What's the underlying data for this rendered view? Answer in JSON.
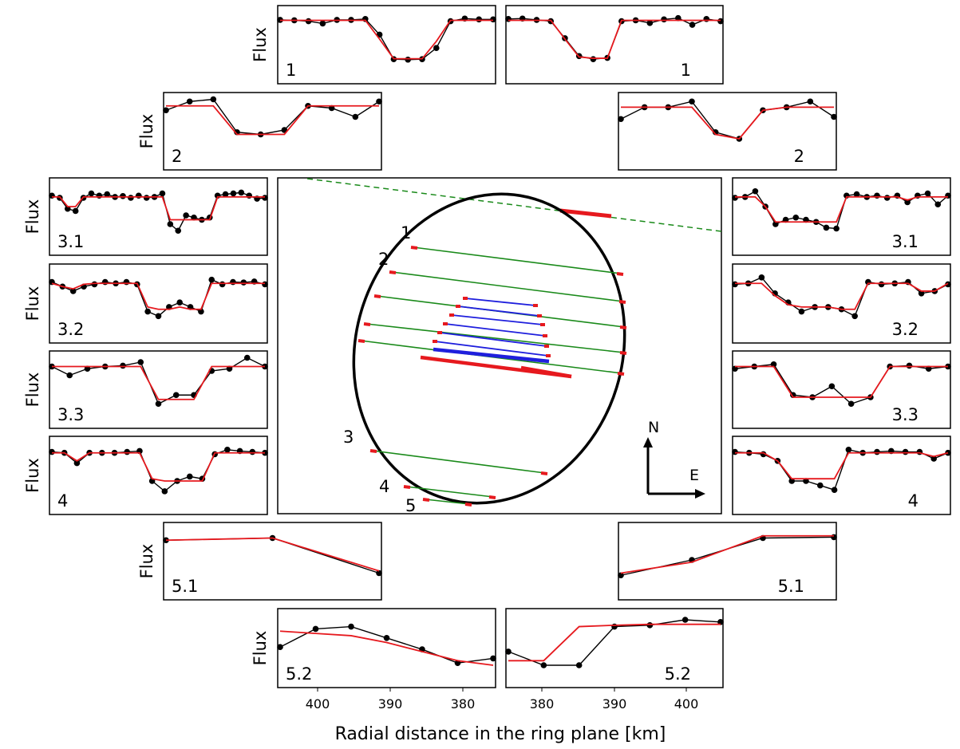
{
  "figure": {
    "y_label": "Flux",
    "x_label": "Radial distance in the ring plane [km]",
    "x_ticks_left": [
      "400",
      "390",
      "380"
    ],
    "x_ticks_right": [
      "380",
      "390",
      "400"
    ]
  },
  "colors": {
    "data": "#000000",
    "model": "#e6191e",
    "chord": "#1a8a1a",
    "ring_chord": "#1f1fdd",
    "limb": "#000000"
  },
  "center_panel": {
    "compass_north": "N",
    "compass_east": "E",
    "chord_labels": [
      "1",
      "2",
      "3",
      "4",
      "5"
    ]
  },
  "chart_data": [
    {
      "type": "line",
      "side": "left",
      "label": "1",
      "series": [
        {
          "role": "observed",
          "values": [
            0.93,
            0.92,
            0.9,
            0.85,
            0.93,
            0.93,
            0.95,
            0.6,
            0.05,
            0.04,
            0.05,
            0.3,
            0.9,
            0.96,
            0.94,
            0.94
          ]
        },
        {
          "role": "model",
          "values": [
            0.92,
            0.92,
            0.92,
            0.92,
            0.92,
            0.92,
            0.92,
            0.5,
            0.06,
            0.06,
            0.06,
            0.45,
            0.92,
            0.92,
            0.92,
            0.92
          ]
        }
      ]
    },
    {
      "type": "line",
      "side": "right",
      "label": "1",
      "series": [
        {
          "role": "observed",
          "values": [
            0.95,
            0.96,
            0.93,
            0.9,
            0.52,
            0.12,
            0.05,
            0.08,
            0.9,
            0.92,
            0.86,
            0.94,
            0.97,
            0.82,
            0.95,
            0.9
          ]
        },
        {
          "role": "model",
          "values": [
            0.92,
            0.92,
            0.92,
            0.92,
            0.5,
            0.1,
            0.07,
            0.07,
            0.92,
            0.92,
            0.92,
            0.92,
            0.92,
            0.92,
            0.92,
            0.92
          ]
        }
      ]
    },
    {
      "type": "line",
      "side": "left",
      "label": "2",
      "series": [
        {
          "role": "observed",
          "values": [
            0.85,
            1.05,
            1.1,
            0.35,
            0.3,
            0.4,
            0.95,
            0.9,
            0.7,
            1.05
          ]
        },
        {
          "role": "model",
          "values": [
            0.95,
            0.95,
            0.95,
            0.3,
            0.3,
            0.3,
            0.95,
            0.95,
            0.95,
            0.95
          ]
        }
      ]
    },
    {
      "type": "line",
      "side": "right",
      "label": "2",
      "series": [
        {
          "role": "observed",
          "values": [
            0.65,
            0.92,
            0.92,
            1.05,
            0.35,
            0.2,
            0.85,
            0.92,
            1.05,
            0.7
          ]
        },
        {
          "role": "model",
          "values": [
            0.92,
            0.92,
            0.92,
            0.92,
            0.3,
            0.2,
            0.85,
            0.92,
            0.92,
            0.92
          ]
        }
      ]
    },
    {
      "type": "line",
      "side": "left",
      "label": "3.1",
      "series": [
        {
          "role": "observed",
          "values": [
            0.85,
            0.8,
            0.55,
            0.5,
            0.8,
            0.9,
            0.85,
            0.88,
            0.82,
            0.84,
            0.8,
            0.85,
            0.8,
            0.82,
            0.9,
            0.2,
            0.05,
            0.4,
            0.35,
            0.3,
            0.35,
            0.85,
            0.88,
            0.9,
            0.92,
            0.85,
            0.78,
            0.8
          ]
        },
        {
          "role": "model",
          "values": [
            0.82,
            0.82,
            0.6,
            0.6,
            0.82,
            0.82,
            0.82,
            0.82,
            0.82,
            0.82,
            0.82,
            0.82,
            0.82,
            0.82,
            0.82,
            0.3,
            0.3,
            0.3,
            0.3,
            0.3,
            0.3,
            0.82,
            0.82,
            0.82,
            0.82,
            0.82,
            0.82,
            0.82
          ]
        }
      ]
    },
    {
      "type": "line",
      "side": "right",
      "label": "3.1",
      "series": [
        {
          "role": "observed",
          "values": [
            0.8,
            0.82,
            0.95,
            0.6,
            0.2,
            0.3,
            0.35,
            0.3,
            0.25,
            0.12,
            0.1,
            0.85,
            0.88,
            0.82,
            0.85,
            0.8,
            0.85,
            0.7,
            0.85,
            0.9,
            0.65,
            0.85
          ]
        },
        {
          "role": "model",
          "values": [
            0.82,
            0.82,
            0.82,
            0.6,
            0.25,
            0.25,
            0.25,
            0.25,
            0.25,
            0.25,
            0.25,
            0.82,
            0.82,
            0.82,
            0.82,
            0.82,
            0.82,
            0.75,
            0.82,
            0.82,
            0.82,
            0.82
          ]
        }
      ]
    },
    {
      "type": "line",
      "side": "left",
      "label": "3.2",
      "series": [
        {
          "role": "observed",
          "values": [
            0.85,
            0.75,
            0.65,
            0.75,
            0.8,
            0.85,
            0.82,
            0.85,
            0.8,
            0.2,
            0.1,
            0.3,
            0.4,
            0.3,
            0.2,
            0.9,
            0.8,
            0.85,
            0.84,
            0.86,
            0.8
          ]
        },
        {
          "role": "model",
          "values": [
            0.82,
            0.75,
            0.7,
            0.8,
            0.82,
            0.82,
            0.82,
            0.82,
            0.82,
            0.3,
            0.25,
            0.25,
            0.3,
            0.25,
            0.25,
            0.82,
            0.82,
            0.82,
            0.82,
            0.82,
            0.82
          ]
        }
      ]
    },
    {
      "type": "line",
      "side": "right",
      "label": "3.2",
      "series": [
        {
          "role": "observed",
          "values": [
            0.8,
            0.82,
            0.95,
            0.6,
            0.4,
            0.2,
            0.3,
            0.3,
            0.25,
            0.1,
            0.85,
            0.8,
            0.82,
            0.85,
            0.6,
            0.65,
            0.8
          ]
        },
        {
          "role": "model",
          "values": [
            0.82,
            0.82,
            0.82,
            0.55,
            0.35,
            0.3,
            0.3,
            0.3,
            0.25,
            0.25,
            0.82,
            0.82,
            0.82,
            0.82,
            0.65,
            0.65,
            0.82
          ]
        }
      ]
    },
    {
      "type": "line",
      "side": "left",
      "label": "3.3",
      "series": [
        {
          "role": "observed",
          "values": [
            0.9,
            0.7,
            0.85,
            0.9,
            0.92,
            1.0,
            0.05,
            0.25,
            0.25,
            0.8,
            0.85,
            1.1,
            0.9
          ]
        },
        {
          "role": "model",
          "values": [
            0.9,
            0.9,
            0.9,
            0.9,
            0.9,
            0.9,
            0.15,
            0.15,
            0.15,
            0.9,
            0.9,
            0.9,
            0.9
          ]
        }
      ]
    },
    {
      "type": "line",
      "side": "right",
      "label": "3.3",
      "series": [
        {
          "role": "observed",
          "values": [
            0.85,
            0.9,
            0.95,
            0.25,
            0.2,
            0.45,
            0.05,
            0.2,
            0.9,
            0.92,
            0.85,
            0.9
          ]
        },
        {
          "role": "model",
          "values": [
            0.9,
            0.9,
            0.9,
            0.2,
            0.2,
            0.2,
            0.2,
            0.2,
            0.9,
            0.9,
            0.9,
            0.9
          ]
        }
      ]
    },
    {
      "type": "line",
      "side": "left",
      "label": "4",
      "series": [
        {
          "role": "observed",
          "values": [
            0.9,
            0.88,
            0.65,
            0.88,
            0.88,
            0.88,
            0.9,
            0.92,
            0.25,
            0.02,
            0.25,
            0.35,
            0.3,
            0.85,
            0.95,
            0.92,
            0.9,
            0.88
          ]
        },
        {
          "role": "model",
          "values": [
            0.88,
            0.88,
            0.7,
            0.88,
            0.88,
            0.88,
            0.88,
            0.88,
            0.3,
            0.25,
            0.25,
            0.25,
            0.25,
            0.88,
            0.88,
            0.88,
            0.88,
            0.88
          ]
        }
      ]
    },
    {
      "type": "line",
      "side": "right",
      "label": "4",
      "series": [
        {
          "role": "observed",
          "values": [
            0.9,
            0.88,
            0.85,
            0.7,
            0.25,
            0.25,
            0.15,
            0.05,
            0.95,
            0.88,
            0.9,
            0.92,
            0.9,
            0.9,
            0.75,
            0.88
          ]
        },
        {
          "role": "model",
          "values": [
            0.88,
            0.88,
            0.88,
            0.7,
            0.3,
            0.3,
            0.3,
            0.3,
            0.88,
            0.88,
            0.88,
            0.88,
            0.88,
            0.88,
            0.8,
            0.88
          ]
        }
      ]
    },
    {
      "type": "line",
      "side": "left",
      "label": "5.1",
      "series": [
        {
          "role": "observed",
          "values": [
            0.85,
            0.9,
            0.1
          ]
        },
        {
          "role": "model",
          "values": [
            0.85,
            0.9,
            0.15
          ]
        }
      ]
    },
    {
      "type": "line",
      "side": "right",
      "label": "5.1",
      "series": [
        {
          "role": "observed",
          "values": [
            0.05,
            0.4,
            0.9,
            0.92
          ]
        },
        {
          "role": "model",
          "values": [
            0.1,
            0.35,
            0.95,
            0.95
          ]
        }
      ]
    },
    {
      "type": "line",
      "side": "left",
      "label": "5.2",
      "series": [
        {
          "role": "observed",
          "values": [
            0.4,
            0.8,
            0.85,
            0.6,
            0.35,
            0.05,
            0.15
          ]
        },
        {
          "role": "model",
          "values": [
            0.75,
            0.7,
            0.65,
            0.5,
            0.3,
            0.1,
            0.0
          ]
        }
      ]
    },
    {
      "type": "line",
      "side": "right",
      "label": "5.2",
      "series": [
        {
          "role": "observed",
          "values": [
            0.3,
            0.0,
            0.0,
            0.85,
            0.88,
            1.0,
            0.95
          ]
        },
        {
          "role": "model",
          "values": [
            0.1,
            0.1,
            0.85,
            0.88,
            0.9,
            0.9,
            0.9
          ]
        }
      ]
    }
  ]
}
